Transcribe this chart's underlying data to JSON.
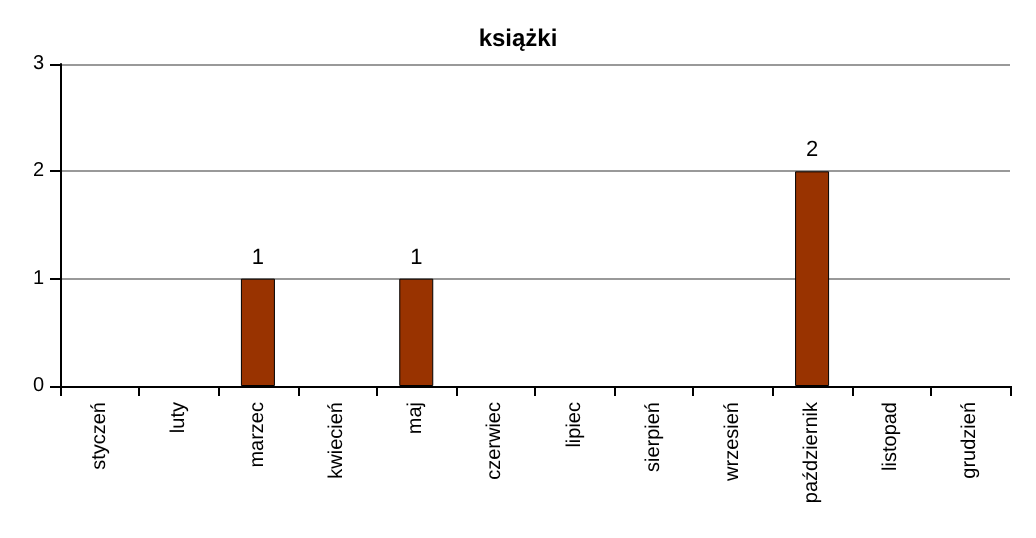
{
  "chart_data": {
    "type": "bar",
    "title": "książki",
    "categories": [
      "styczeń",
      "luty",
      "marzec",
      "kwiecień",
      "maj",
      "czerwiec",
      "lipiec",
      "sierpień",
      "wrzesień",
      "październik",
      "listopad",
      "grudzień"
    ],
    "values": [
      0,
      0,
      1,
      0,
      1,
      0,
      0,
      0,
      0,
      2,
      0,
      0
    ],
    "value_labels": [
      null,
      null,
      "1",
      null,
      "1",
      null,
      null,
      null,
      null,
      "2",
      null,
      null
    ],
    "color": "#993300",
    "ylim": [
      0,
      3
    ],
    "yticks": [
      0,
      1,
      2,
      3
    ],
    "grid": "y"
  }
}
